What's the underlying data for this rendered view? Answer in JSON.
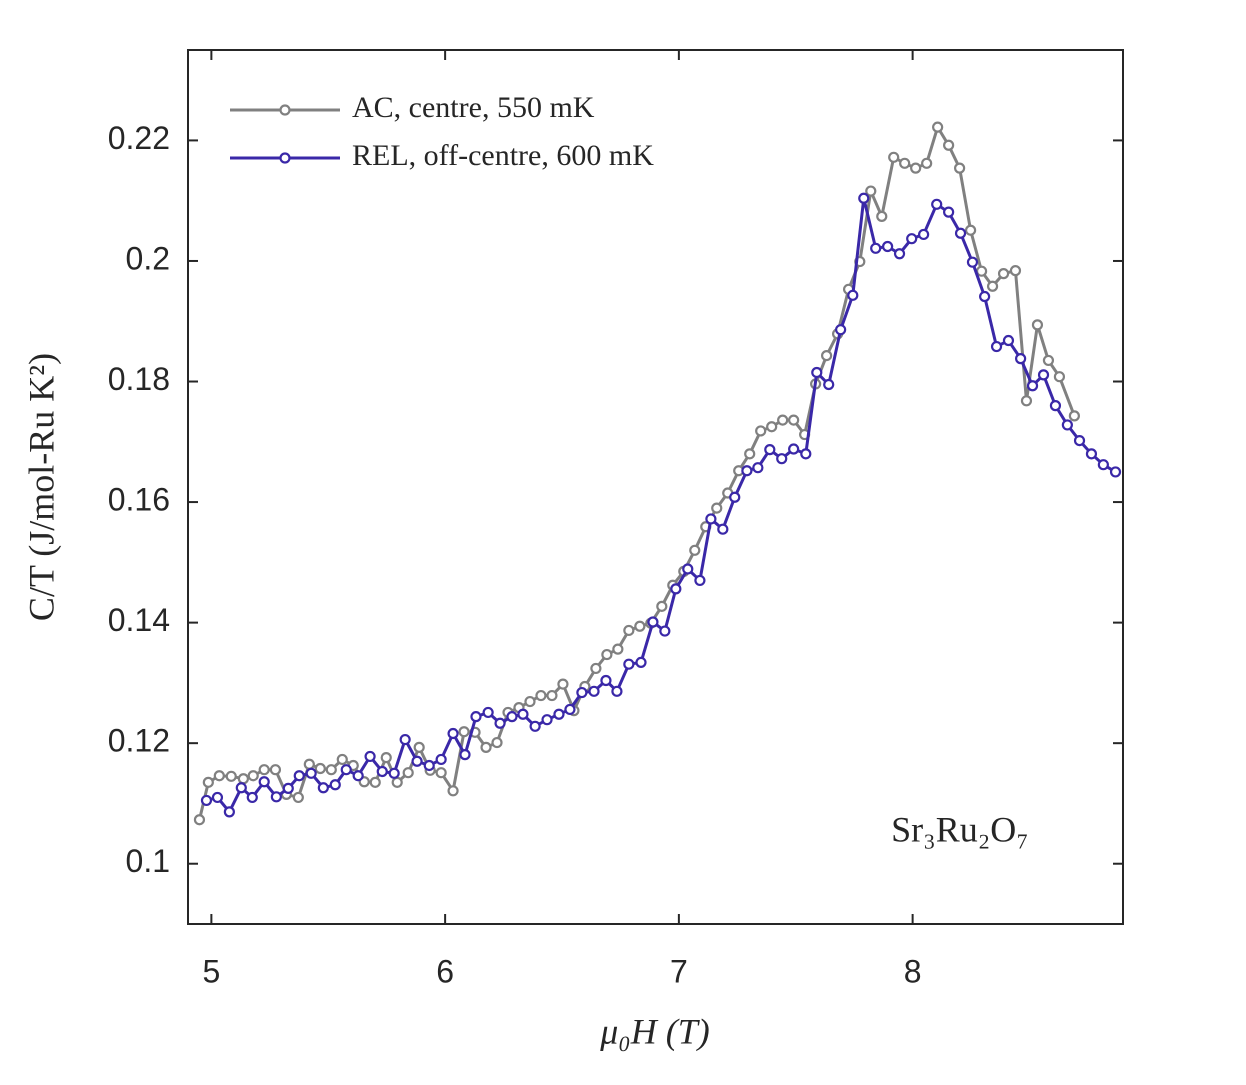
{
  "chart_data": {
    "type": "line",
    "xlabel": "μ₀H (T)",
    "ylabel": "C/T (J/mol-Ru K²)",
    "annotation": "Sr₃Ru₂O₇",
    "xlim": [
      4.9,
      8.9
    ],
    "xticks": [
      5,
      6,
      7,
      8
    ],
    "ylim": [
      0.09,
      0.235
    ],
    "yticks": [
      0.1,
      0.12,
      0.14,
      0.16,
      0.18,
      0.2,
      0.22
    ],
    "legend": "top-left",
    "series": [
      {
        "name": "AC, centre, 550 mK",
        "color": "#808080",
        "x": [
          4.949,
          4.987,
          5.034,
          5.085,
          5.137,
          5.179,
          5.226,
          5.274,
          5.321,
          5.372,
          5.419,
          5.466,
          5.513,
          5.56,
          5.607,
          5.654,
          5.701,
          5.748,
          5.795,
          5.842,
          5.889,
          5.936,
          5.983,
          6.034,
          6.081,
          6.128,
          6.175,
          6.222,
          6.269,
          6.316,
          6.363,
          6.41,
          6.457,
          6.504,
          6.551,
          6.598,
          6.645,
          6.692,
          6.739,
          6.786,
          6.833,
          6.88,
          6.927,
          6.974,
          7.021,
          7.068,
          7.115,
          7.162,
          7.209,
          7.256,
          7.303,
          7.35,
          7.397,
          7.444,
          7.491,
          7.538,
          7.585,
          7.632,
          7.679,
          7.726,
          7.774,
          7.821,
          7.868,
          7.919,
          7.966,
          8.013,
          8.06,
          8.107,
          8.154,
          8.201,
          8.248,
          8.295,
          8.342,
          8.389,
          8.44,
          8.487,
          8.534,
          8.581,
          8.628,
          8.692
        ],
        "values": [
          0.1073,
          0.1135,
          0.1146,
          0.1145,
          0.1141,
          0.1146,
          0.1156,
          0.1156,
          0.1115,
          0.111,
          0.1165,
          0.1158,
          0.1156,
          0.1173,
          0.1163,
          0.1136,
          0.1135,
          0.1176,
          0.1135,
          0.1151,
          0.1193,
          0.1155,
          0.1151,
          0.1121,
          0.1219,
          0.1218,
          0.1193,
          0.1201,
          0.1251,
          0.1259,
          0.1269,
          0.1279,
          0.1279,
          0.1298,
          0.1254,
          0.1294,
          0.1324,
          0.1347,
          0.1356,
          0.1387,
          0.1394,
          0.1399,
          0.1427,
          0.1462,
          0.1485,
          0.152,
          0.1559,
          0.159,
          0.1615,
          0.1652,
          0.168,
          0.1718,
          0.1725,
          0.1736,
          0.1736,
          0.1712,
          0.1796,
          0.1843,
          0.1879,
          0.1953,
          0.1999,
          0.2116,
          0.2074,
          0.2172,
          0.2162,
          0.2154,
          0.2162,
          0.2222,
          0.2192,
          0.2154,
          0.2051,
          0.1983,
          0.1958,
          0.1979,
          0.1984,
          0.1768,
          0.1894,
          0.1835,
          0.1808,
          0.1743
        ]
      },
      {
        "name": "REL, off-centre, 600 mK",
        "color": "#3a28a8",
        "x": [
          4.979,
          5.026,
          5.077,
          5.128,
          5.175,
          5.226,
          5.278,
          5.329,
          5.376,
          5.427,
          5.479,
          5.53,
          5.577,
          5.628,
          5.679,
          5.731,
          5.782,
          5.829,
          5.88,
          5.932,
          5.983,
          6.034,
          6.085,
          6.132,
          6.184,
          6.235,
          6.286,
          6.333,
          6.385,
          6.436,
          6.487,
          6.534,
          6.585,
          6.637,
          6.688,
          6.735,
          6.786,
          6.838,
          6.889,
          6.94,
          6.987,
          7.038,
          7.09,
          7.137,
          7.188,
          7.239,
          7.291,
          7.338,
          7.389,
          7.44,
          7.491,
          7.543,
          7.59,
          7.641,
          7.692,
          7.744,
          7.791,
          7.842,
          7.893,
          7.944,
          7.996,
          8.047,
          8.103,
          8.154,
          8.205,
          8.256,
          8.308,
          8.359,
          8.41,
          8.462,
          8.513,
          8.56,
          8.611,
          8.662,
          8.714,
          8.765,
          8.816,
          8.868
        ],
        "values": [
          0.1105,
          0.111,
          0.1086,
          0.1126,
          0.111,
          0.1136,
          0.1111,
          0.1125,
          0.1146,
          0.115,
          0.1126,
          0.1131,
          0.1156,
          0.1146,
          0.1178,
          0.1153,
          0.115,
          0.1206,
          0.117,
          0.1163,
          0.1173,
          0.1216,
          0.1181,
          0.1244,
          0.1251,
          0.1233,
          0.1244,
          0.1248,
          0.1228,
          0.1239,
          0.1248,
          0.1256,
          0.1284,
          0.1286,
          0.1304,
          0.1286,
          0.1331,
          0.1334,
          0.1401,
          0.1386,
          0.1456,
          0.1489,
          0.147,
          0.1572,
          0.1555,
          0.1608,
          0.1652,
          0.1657,
          0.1687,
          0.1672,
          0.1688,
          0.168,
          0.1815,
          0.1795,
          0.1886,
          0.1943,
          0.2104,
          0.2021,
          0.2024,
          0.2012,
          0.2037,
          0.2044,
          0.2094,
          0.2081,
          0.2046,
          0.1998,
          0.1941,
          0.1858,
          0.1868,
          0.1838,
          0.1793,
          0.1811,
          0.176,
          0.1728,
          0.1702,
          0.168,
          0.1662,
          0.165
        ]
      }
    ]
  }
}
